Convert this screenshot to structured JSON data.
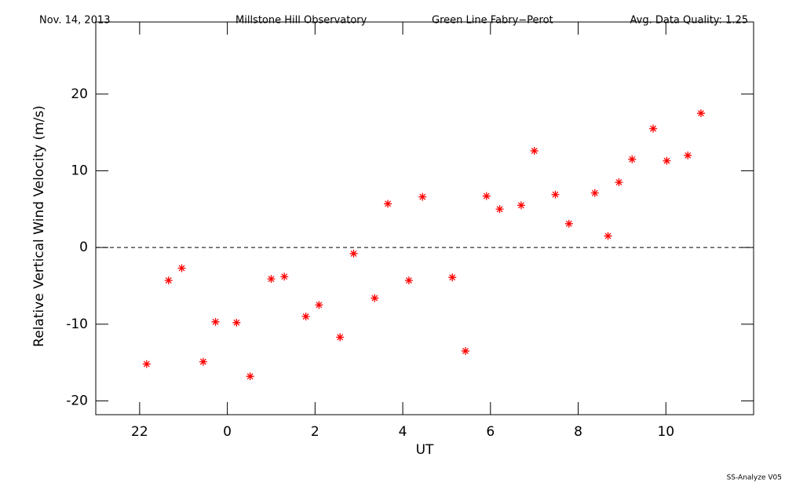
{
  "chart_data": {
    "type": "scatter",
    "date": "Nov. 14, 2013",
    "observatory": "Millstone Hill Observatory",
    "instrument": "Green Line Fabry−Perot",
    "quality_note": "Avg. Data Quality: 1.25",
    "footer": "SS-Analyze V05",
    "xlabel": "UT",
    "ylabel": "Relative Vertical Wind Velocity (m/s)",
    "xlim": [
      -3,
      12
    ],
    "xticks": [
      {
        "value": -2,
        "label": "22"
      },
      0,
      2,
      4,
      6,
      8,
      10
    ],
    "ylim": [
      -21.8,
      29.4
    ],
    "yticks": [
      -20,
      -10,
      0,
      10,
      20
    ],
    "reference_line": 0,
    "series": [
      {
        "color": "#ff0000",
        "x": [
          -1.84,
          -1.34,
          -1.04,
          -0.55,
          -0.27,
          0.21,
          0.52,
          1.0,
          1.3,
          1.79,
          2.09,
          2.57,
          2.88,
          3.36,
          3.66,
          4.14,
          4.45,
          5.13,
          5.43,
          5.91,
          6.21,
          6.7,
          7.0,
          7.48,
          7.79,
          8.38,
          8.68,
          8.93,
          9.23,
          9.71,
          10.02,
          10.5,
          10.8
        ],
        "values": [
          -15.2,
          -4.3,
          -2.7,
          -14.9,
          -9.7,
          -9.8,
          -16.8,
          -4.1,
          -3.8,
          -9.0,
          -7.5,
          -11.7,
          -0.8,
          -6.6,
          5.7,
          -4.3,
          6.6,
          -3.9,
          -13.5,
          6.7,
          5.0,
          5.5,
          12.6,
          6.9,
          3.1,
          7.1,
          1.5,
          8.5,
          11.5,
          15.5,
          11.3,
          12.0,
          17.5
        ]
      }
    ]
  }
}
